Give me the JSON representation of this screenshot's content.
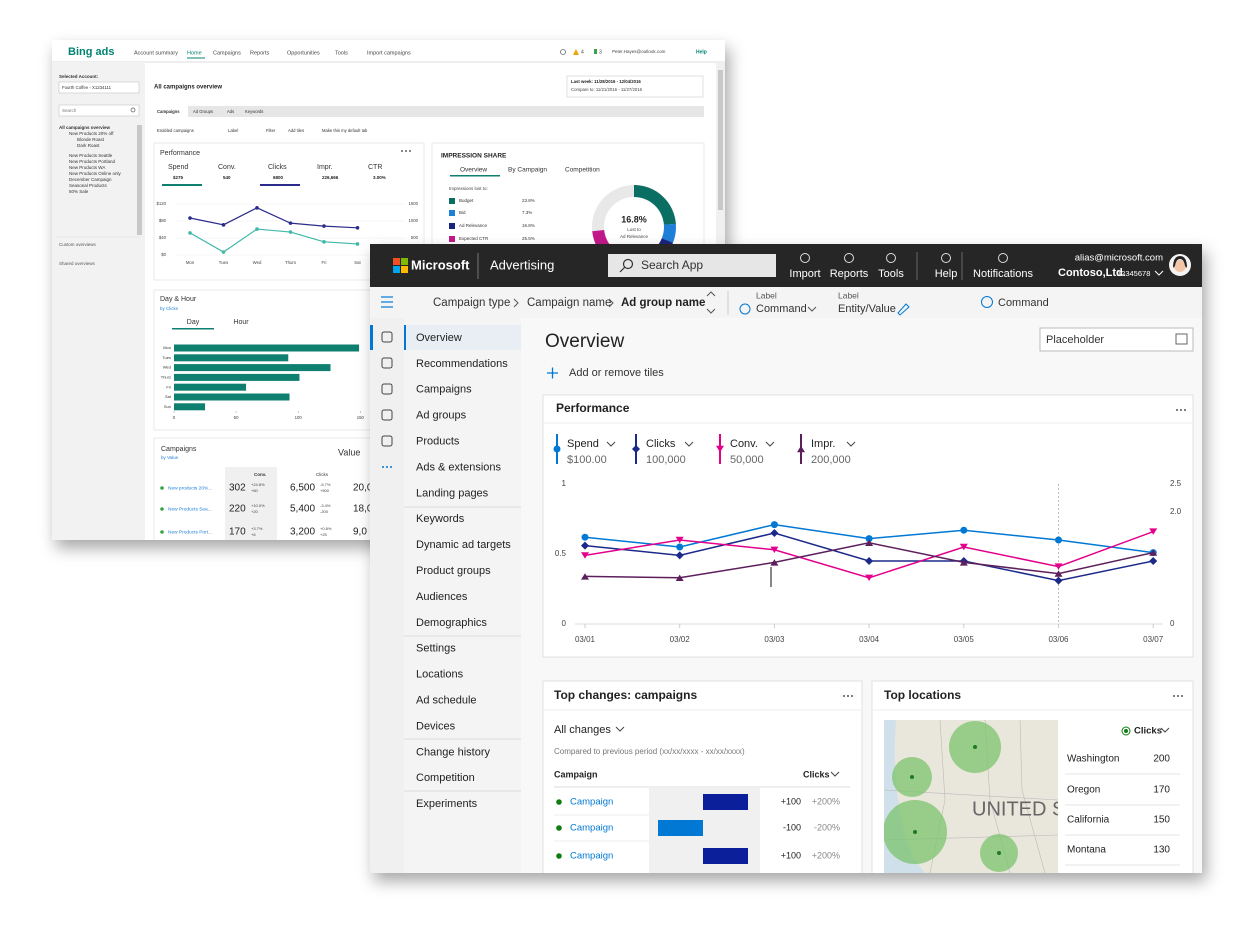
{
  "back_window": {
    "brand": "Bing ads",
    "nav": [
      "Account summary",
      "Home",
      "Campaigns",
      "Reports",
      "Opportunities",
      "Tools",
      "Import campaigns"
    ],
    "alerts": "4",
    "flags": "3",
    "user": "Peter.Hayes@outlook.com",
    "help": "Help",
    "sidebar": {
      "account_label": "Selected Account:",
      "account": "Fourth Coffee - X1234111",
      "search": "Search",
      "tree": [
        "All campaigns overview",
        "New Products 20% off",
        "Blonde Roast",
        "Dark Roast",
        "New Products Seattle",
        "New Products Portland",
        "New Products WA",
        "New Products Online only",
        "December Campaign",
        "Seasonal Products",
        "50% Sale"
      ],
      "custom": "Custom overviews",
      "shared": "Shared overviews"
    },
    "page_title": "All campaigns overview",
    "date_range": {
      "current": "Last week: 11/28/2016 - 12/04/2016",
      "compare": "Compare to: 11/21/2016 - 11/27/2016"
    },
    "tabs": [
      "Campaigns",
      "Ad Groups",
      "Ads",
      "Keywords"
    ],
    "filters": [
      "Enabled campaigns",
      "Label",
      "Filter",
      "Add tiles",
      "Make this my default tab"
    ],
    "performance": {
      "title": "Performance",
      "metrics": [
        {
          "name": "Spend",
          "value": "$275"
        },
        {
          "name": "Conv.",
          "value": "540"
        },
        {
          "name": "Clicks",
          "value": "6800"
        },
        {
          "name": "Impr.",
          "value": "226,666"
        },
        {
          "name": "CTR",
          "value": "3.00%"
        }
      ],
      "chart": {
        "type": "line",
        "categories": [
          "Mon",
          "Tues",
          "Wed",
          "Thurs",
          "Fri",
          "Sat"
        ],
        "series": [
          {
            "color": "#2b2b8c",
            "values": [
              87,
              71,
              111,
              75,
              68,
              64
            ]
          },
          {
            "color": "#3fb8a8",
            "values": [
              52,
              7,
              61,
              54,
              31,
              26
            ]
          }
        ],
        "ylim": [
          0,
          120
        ],
        "yticks": [
          {
            "value": 0,
            "label": "$0"
          },
          {
            "value": 40,
            "label": "$40"
          },
          {
            "value": 80,
            "label": "$80"
          },
          {
            "value": 120,
            "label": "$120"
          }
        ],
        "y2lim": [
          0,
          1500
        ],
        "y2ticks": [
          500,
          1000,
          1500
        ]
      }
    },
    "impression_share": {
      "title": "IMPRESSION SHARE",
      "tabs": [
        "Overview",
        "By Campaign",
        "Competition"
      ],
      "lost_label": "Impressions lost to:",
      "chart": {
        "type": "pie",
        "categories": [
          "Budget",
          "Bid",
          "Ad Relevance",
          "Expected CTR"
        ],
        "values": [
          23.8,
          7.3,
          16.8,
          25.5
        ],
        "value_labels": [
          "23.8%",
          "7.3%",
          "16.8%",
          "25.5%"
        ],
        "colors": [
          "#0b6e63",
          "#1e7fd8",
          "#1a237e",
          "#c2188a"
        ]
      },
      "center_value": "16.8%",
      "center_caption": [
        "Lost to",
        "Ad Relevance"
      ]
    },
    "day_hour": {
      "title": "Day & Hour",
      "subtitle": "by Clicks",
      "tabs": [
        "Day",
        "Hour"
      ],
      "chart": {
        "type": "bar",
        "orientation": "horizontal",
        "categories": [
          "Mon",
          "Tues",
          "Wed",
          "Thurs",
          "Fri",
          "Sat",
          "Sun"
        ],
        "values": [
          149,
          92,
          126,
          101,
          58,
          93,
          25
        ],
        "color": "#0f7f6f",
        "xlim": [
          0,
          190
        ],
        "xticks": [
          0,
          50,
          100,
          150
        ]
      }
    },
    "campaigns": {
      "title": "Campaigns",
      "subtitle": "by Value",
      "metric": "Value",
      "columns": [
        "Conv.",
        "Clicks"
      ],
      "rows": [
        {
          "name": "New products 20%...",
          "conv": "302",
          "conv_change": [
            "+24.8%",
            "+60"
          ],
          "clicks": "6,500",
          "clicks_change": [
            "-5.7%",
            "+500"
          ],
          "value": "20,0"
        },
        {
          "name": "New Products Sea...",
          "conv": "220",
          "conv_change": [
            "+10.0%",
            "+20"
          ],
          "clicks": "5,400",
          "clicks_change": [
            "-3.4%",
            "-200"
          ],
          "value": "18,0"
        },
        {
          "name": "New Products Port...",
          "conv": "170",
          "conv_change": [
            "+3.7%",
            "+6"
          ],
          "clicks": "3,200",
          "clicks_change": [
            "+0.8%",
            "+25"
          ],
          "value": "9,0"
        }
      ]
    }
  },
  "front_window": {
    "brand": "Microsoft",
    "product": "Advertising",
    "search": "Search App",
    "toolbar": [
      "Import",
      "Reports",
      "Tools",
      "Help",
      "Notifications"
    ],
    "user": {
      "email": "alias@microsoft.com",
      "company": "Contoso,Ltd.",
      "account": "12345678"
    },
    "breadcrumb": [
      "Campaign type",
      "Campaign name",
      "Ad group name"
    ],
    "commands": [
      {
        "label": "Label",
        "value": "Command"
      },
      {
        "label": "Label",
        "value": "Entity/Value"
      }
    ],
    "command": "Command",
    "nav": [
      "Overview",
      "Recommendations",
      "Campaigns",
      "Ad groups",
      "Products",
      "Ads & extensions",
      "Landing pages",
      "Keywords",
      "Dynamic ad targets",
      "Product groups",
      "Audiences",
      "Demographics",
      "Settings",
      "Locations",
      "Ad schedule",
      "Devices",
      "Change history",
      "Competition",
      "Experiments"
    ],
    "title": "Overview",
    "date_placeholder": "Placeholder",
    "add_tiles": "Add or remove tiles",
    "performance": {
      "title": "Performance",
      "chart": {
        "type": "line",
        "categories": [
          "03/01",
          "03/02",
          "03/03",
          "03/04",
          "03/05",
          "03/06",
          "03/07"
        ],
        "series": [
          {
            "name": "Spend",
            "total": "$100.00",
            "color": "#0078d4",
            "marker": "circle",
            "values": [
              0.62,
              0.55,
              0.71,
              0.61,
              0.67,
              0.6,
              0.51
            ]
          },
          {
            "name": "Clicks",
            "total": "100,000",
            "color": "#1b2a8a",
            "marker": "diamond",
            "values": [
              0.56,
              0.49,
              0.65,
              0.45,
              0.45,
              0.31,
              0.45
            ]
          },
          {
            "name": "Conv.",
            "total": "50,000",
            "color": "#e3008c",
            "marker": "triangle-down",
            "values": [
              0.49,
              0.6,
              0.53,
              0.33,
              0.55,
              0.41,
              0.66
            ]
          },
          {
            "name": "Impr.",
            "total": "200,000",
            "color": "#5c1f5c",
            "marker": "triangle-up",
            "values": [
              0.34,
              0.33,
              0.44,
              0.58,
              0.44,
              0.36,
              0.51
            ]
          }
        ],
        "ylim": [
          0,
          1
        ],
        "yticks": [
          0,
          0.5,
          1
        ],
        "y2lim": [
          0,
          2.5
        ],
        "y2ticks": [
          0,
          {
            "value": 2,
            "label": "2.0"
          },
          2.5
        ]
      }
    },
    "top_changes": {
      "title": "Top changes: campaigns",
      "filter": "All changes",
      "note": "Compared to previous period (xx/xx/xxxx - xx/xx/xxxx)",
      "columns": [
        "Campaign",
        "Clicks"
      ],
      "rows": [
        {
          "name": "Campaign",
          "change": 100,
          "change_label": "+100",
          "percent": "+200%"
        },
        {
          "name": "Campaign",
          "change": -100,
          "change_label": "-100",
          "percent": "-200%"
        },
        {
          "name": "Campaign",
          "change": 100,
          "change_label": "+100",
          "percent": "+200%"
        }
      ]
    },
    "top_locations": {
      "title": "Top locations",
      "map_label": "UNITED ST",
      "metric": "Clicks",
      "rows": [
        {
          "name": "Washington",
          "value": "200"
        },
        {
          "name": "Oregon",
          "value": "170"
        },
        {
          "name": "California",
          "value": "150"
        },
        {
          "name": "Montana",
          "value": "130"
        }
      ]
    }
  }
}
